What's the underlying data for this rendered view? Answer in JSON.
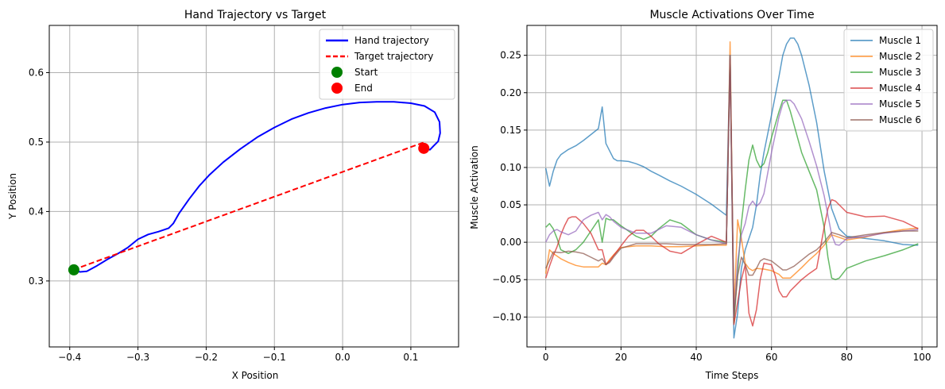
{
  "chart_data": [
    {
      "type": "line",
      "title": "Hand Trajectory vs Target",
      "xlabel": "X Position",
      "ylabel": "Y Position",
      "xlim": [
        -0.43,
        0.17
      ],
      "ylim": [
        0.205,
        0.668
      ],
      "xticks": [
        -0.4,
        -0.3,
        -0.2,
        -0.1,
        0.0,
        0.1
      ],
      "xtick_labels": [
        "−0.4",
        "−0.3",
        "−0.2",
        "−0.1",
        "0.0",
        "0.1"
      ],
      "yticks": [
        0.3,
        0.4,
        0.5,
        0.6
      ],
      "ytick_labels": [
        "0.3",
        "0.4",
        "0.5",
        "0.6"
      ],
      "grid": true,
      "legend_position": "top-right",
      "series": [
        {
          "name": "Hand trajectory",
          "style": "solid",
          "color": "#0000ff",
          "x": [
            -0.395,
            -0.385,
            -0.375,
            -0.36,
            -0.345,
            -0.33,
            -0.315,
            -0.3,
            -0.285,
            -0.27,
            -0.255,
            -0.248,
            -0.24,
            -0.225,
            -0.21,
            -0.195,
            -0.175,
            -0.15,
            -0.125,
            -0.1,
            -0.075,
            -0.05,
            -0.025,
            0.0,
            0.025,
            0.05,
            0.075,
            0.1,
            0.12,
            0.135,
            0.142,
            0.143,
            0.14,
            0.133,
            0.128,
            0.12
          ],
          "y": [
            0.316,
            0.313,
            0.314,
            0.322,
            0.331,
            0.339,
            0.348,
            0.36,
            0.367,
            0.371,
            0.376,
            0.383,
            0.397,
            0.418,
            0.437,
            0.453,
            0.471,
            0.49,
            0.507,
            0.521,
            0.533,
            0.542,
            0.549,
            0.554,
            0.557,
            0.558,
            0.558,
            0.556,
            0.552,
            0.543,
            0.529,
            0.513,
            0.501,
            0.494,
            0.489,
            0.491
          ]
        },
        {
          "name": "Target trajectory",
          "style": "dashed",
          "color": "#ff0000",
          "x": [
            -0.395,
            0.12
          ],
          "y": [
            0.316,
            0.5
          ]
        }
      ],
      "markers": [
        {
          "name": "Start",
          "x": -0.394,
          "y": 0.316,
          "color": "#008000"
        },
        {
          "name": "End",
          "x": 0.119,
          "y": 0.491,
          "color": "#ff0000"
        }
      ]
    },
    {
      "type": "line",
      "title": "Muscle Activations Over Time",
      "xlabel": "Time Steps",
      "ylabel": "Muscle Activation",
      "xlim": [
        -5,
        104
      ],
      "ylim": [
        -0.14,
        0.29
      ],
      "xticks": [
        0,
        20,
        40,
        60,
        80,
        100
      ],
      "xtick_labels": [
        "0",
        "20",
        "40",
        "60",
        "80",
        "100"
      ],
      "yticks": [
        -0.1,
        -0.05,
        0.0,
        0.05,
        0.1,
        0.15,
        0.2,
        0.25
      ],
      "ytick_labels": [
        "−0.10",
        "−0.05",
        "0.00",
        "0.05",
        "0.10",
        "0.15",
        "0.20",
        "0.25"
      ],
      "grid": true,
      "legend_position": "top-right",
      "series": [
        {
          "name": "Muscle 1",
          "color": "#1f77b4",
          "x": [
            0,
            1,
            2,
            3,
            4,
            6,
            8,
            10,
            12,
            14,
            15,
            16,
            17,
            18,
            19,
            20,
            22,
            24,
            26,
            28,
            30,
            33,
            36,
            40,
            44,
            48,
            49,
            50,
            51,
            52,
            53,
            54,
            55,
            56,
            57,
            58,
            60,
            62,
            63,
            64,
            65,
            66,
            67,
            68,
            70,
            72,
            74,
            76,
            78,
            80,
            85,
            90,
            95,
            99
          ],
          "y": [
            0.099,
            0.075,
            0.095,
            0.11,
            0.117,
            0.124,
            0.129,
            0.136,
            0.144,
            0.152,
            0.181,
            0.132,
            0.122,
            0.112,
            0.109,
            0.109,
            0.108,
            0.105,
            0.101,
            0.095,
            0.09,
            0.082,
            0.075,
            0.064,
            0.051,
            0.036,
            0.25,
            -0.128,
            -0.095,
            -0.035,
            -0.01,
            0.005,
            0.02,
            0.05,
            0.09,
            0.12,
            0.17,
            0.222,
            0.25,
            0.265,
            0.273,
            0.273,
            0.265,
            0.25,
            0.21,
            0.16,
            0.095,
            0.045,
            0.018,
            0.008,
            0.005,
            0.002,
            -0.003,
            -0.004
          ]
        },
        {
          "name": "Muscle 2",
          "color": "#ff7f0e",
          "x": [
            0,
            1,
            2,
            4,
            6,
            8,
            10,
            12,
            14,
            15,
            16,
            17,
            18,
            20,
            24,
            28,
            32,
            36,
            40,
            44,
            48,
            49,
            50,
            51,
            52,
            53,
            54,
            55,
            56,
            58,
            60,
            62,
            63,
            65,
            68,
            70,
            72,
            74,
            76,
            80,
            85,
            90,
            95,
            99
          ],
          "y": [
            -0.042,
            -0.01,
            -0.015,
            -0.022,
            -0.027,
            -0.031,
            -0.033,
            -0.033,
            -0.033,
            -0.028,
            -0.03,
            -0.023,
            -0.017,
            -0.007,
            -0.005,
            -0.005,
            -0.006,
            -0.006,
            -0.005,
            -0.004,
            -0.004,
            0.268,
            -0.095,
            0.03,
            0.005,
            -0.028,
            -0.035,
            -0.038,
            -0.035,
            -0.036,
            -0.038,
            -0.043,
            -0.048,
            -0.048,
            -0.034,
            -0.024,
            -0.015,
            -0.004,
            0.01,
            0.003,
            0.007,
            0.013,
            0.017,
            0.019
          ]
        },
        {
          "name": "Muscle 3",
          "color": "#2ca02c",
          "x": [
            0,
            1,
            2,
            3,
            4,
            6,
            8,
            10,
            12,
            14,
            15,
            16,
            17,
            18,
            20,
            22,
            24,
            26,
            28,
            30,
            33,
            36,
            40,
            44,
            48,
            49,
            50,
            51,
            52,
            53,
            54,
            55,
            56,
            57,
            58,
            59,
            60,
            62,
            63,
            64,
            65,
            68,
            70,
            72,
            74,
            75,
            76,
            77,
            78,
            80,
            85,
            90,
            95,
            99
          ],
          "y": [
            0.02,
            0.025,
            0.018,
            0.005,
            -0.01,
            -0.015,
            -0.01,
            0.0,
            0.015,
            0.03,
            0.0,
            0.032,
            0.03,
            0.03,
            0.022,
            0.015,
            0.008,
            0.004,
            0.008,
            0.018,
            0.03,
            0.025,
            0.01,
            0.003,
            0.0,
            0.25,
            -0.108,
            -0.04,
            0.025,
            0.07,
            0.11,
            0.13,
            0.11,
            0.1,
            0.105,
            0.12,
            0.14,
            0.175,
            0.19,
            0.19,
            0.175,
            0.12,
            0.095,
            0.07,
            0.02,
            -0.02,
            -0.048,
            -0.05,
            -0.048,
            -0.035,
            -0.025,
            -0.018,
            -0.01,
            -0.002
          ]
        },
        {
          "name": "Muscle 4",
          "color": "#d62728",
          "x": [
            0,
            1,
            2,
            3,
            4,
            5,
            6,
            7,
            8,
            10,
            12,
            14,
            15,
            16,
            17,
            18,
            20,
            22,
            24,
            26,
            28,
            30,
            33,
            36,
            40,
            44,
            48,
            49,
            50,
            51,
            52,
            53,
            54,
            55,
            56,
            57,
            58,
            60,
            61,
            62,
            63,
            64,
            65,
            66,
            68,
            70,
            72,
            74,
            75,
            76,
            77,
            78,
            80,
            85,
            90,
            95,
            99
          ],
          "y": [
            -0.048,
            -0.032,
            -0.018,
            -0.006,
            0.01,
            0.022,
            0.032,
            0.034,
            0.034,
            0.025,
            0.012,
            -0.01,
            -0.01,
            -0.03,
            -0.025,
            -0.018,
            -0.005,
            0.008,
            0.016,
            0.016,
            0.008,
            -0.002,
            -0.012,
            -0.015,
            -0.003,
            0.008,
            0.0,
            0.245,
            -0.11,
            -0.08,
            -0.05,
            -0.03,
            -0.095,
            -0.112,
            -0.09,
            -0.05,
            -0.028,
            -0.03,
            -0.045,
            -0.065,
            -0.073,
            -0.073,
            -0.065,
            -0.06,
            -0.05,
            -0.042,
            -0.035,
            0.02,
            0.045,
            0.057,
            0.055,
            0.05,
            0.04,
            0.034,
            0.035,
            0.028,
            0.018
          ]
        },
        {
          "name": "Muscle 5",
          "color": "#9467bd",
          "x": [
            0,
            1,
            2,
            3,
            4,
            6,
            8,
            10,
            12,
            14,
            15,
            16,
            17,
            18,
            20,
            24,
            28,
            32,
            36,
            40,
            44,
            48,
            49,
            50,
            51,
            52,
            53,
            54,
            55,
            56,
            57,
            58,
            60,
            62,
            63,
            64,
            65,
            66,
            68,
            70,
            72,
            74,
            76,
            77,
            78,
            80,
            85,
            90,
            95,
            99
          ],
          "y": [
            0.0,
            0.01,
            0.015,
            0.017,
            0.014,
            0.01,
            0.015,
            0.03,
            0.036,
            0.04,
            0.03,
            0.037,
            0.034,
            0.028,
            0.02,
            0.012,
            0.012,
            0.022,
            0.02,
            0.01,
            0.003,
            -0.002,
            0.25,
            -0.1,
            -0.025,
            0.01,
            0.025,
            0.048,
            0.055,
            0.048,
            0.053,
            0.065,
            0.12,
            0.168,
            0.185,
            0.19,
            0.19,
            0.185,
            0.165,
            0.135,
            0.102,
            0.062,
            0.01,
            -0.003,
            -0.004,
            0.005,
            0.008,
            0.012,
            0.015,
            0.017
          ]
        },
        {
          "name": "Muscle 6",
          "color": "#8c564b",
          "x": [
            0,
            2,
            4,
            6,
            8,
            10,
            12,
            14,
            15,
            16,
            17,
            18,
            20,
            24,
            28,
            32,
            36,
            40,
            44,
            48,
            49,
            50,
            51,
            52,
            53,
            54,
            55,
            56,
            57,
            58,
            60,
            62,
            63,
            64,
            66,
            68,
            70,
            72,
            74,
            76,
            78,
            80,
            85,
            90,
            95,
            99
          ],
          "y": [
            -0.035,
            -0.013,
            -0.014,
            -0.012,
            -0.013,
            -0.015,
            -0.02,
            -0.025,
            -0.022,
            -0.03,
            -0.027,
            -0.02,
            -0.008,
            -0.002,
            -0.002,
            -0.002,
            -0.003,
            -0.003,
            -0.003,
            -0.002,
            0.25,
            -0.1,
            -0.045,
            -0.02,
            -0.03,
            -0.044,
            -0.044,
            -0.035,
            -0.025,
            -0.022,
            -0.025,
            -0.033,
            -0.037,
            -0.037,
            -0.032,
            -0.024,
            -0.016,
            -0.01,
            0.0,
            0.013,
            0.01,
            0.006,
            0.01,
            0.013,
            0.015,
            0.015
          ]
        }
      ]
    }
  ]
}
